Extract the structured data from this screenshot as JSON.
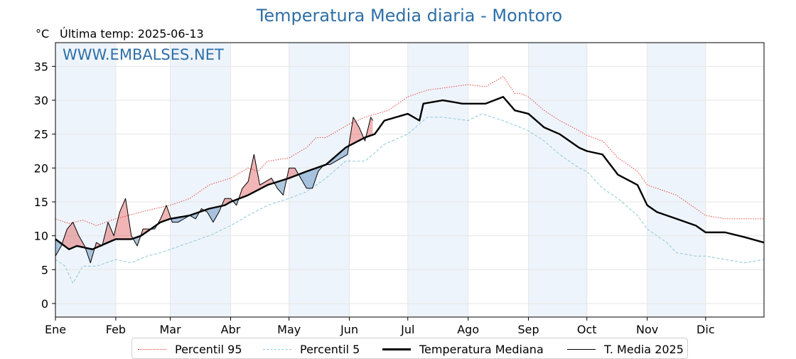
{
  "header": {
    "title": "Temperatura Media diaria - Montoro",
    "unit": "°C",
    "last_temp": "Última temp: 2025-06-13",
    "watermark": "WWW.EMBALSES.NET"
  },
  "colors": {
    "title": "#2e6fa7",
    "p95": "#e3342f",
    "p5": "#8cc7dc",
    "median": "#000000",
    "t2025": "#000000",
    "above": "#e05a5a",
    "below": "#4f86b5",
    "month_band": "#eef4fb"
  },
  "chart_data": {
    "type": "line",
    "title": "Temperatura Media diaria - Montoro",
    "ylabel": "°C",
    "xlabel": "",
    "x_unit": "day of year (1 = 1 Ene)",
    "xlim": [
      1,
      365
    ],
    "ylim": [
      -2,
      38.5
    ],
    "yticks": [
      0,
      5,
      10,
      15,
      20,
      25,
      30,
      35
    ],
    "grid": true,
    "legend_position": "bottom",
    "months": [
      "Ene",
      "Feb",
      "Mar",
      "Abr",
      "May",
      "Jun",
      "Jul",
      "Ago",
      "Sep",
      "Oct",
      "Nov",
      "Dic"
    ],
    "month_start_days": [
      1,
      32,
      60,
      91,
      121,
      152,
      182,
      213,
      244,
      274,
      305,
      335
    ],
    "series": [
      {
        "name": "Percentil 95",
        "style": "dotted-red",
        "x": [
          1,
          8,
          15,
          22,
          32,
          45,
          52,
          60,
          70,
          80,
          91,
          100,
          105,
          110,
          121,
          130,
          135,
          140,
          152,
          160,
          172,
          182,
          192,
          200,
          210,
          213,
          222,
          231,
          237,
          240,
          244,
          252,
          260,
          270,
          274,
          282,
          290,
          300,
          305,
          320,
          330,
          335,
          345,
          355,
          365
        ],
        "y": [
          12.5,
          11.8,
          12.3,
          11.5,
          12.5,
          13.5,
          14,
          14.5,
          15.5,
          17.5,
          18.5,
          20,
          19.5,
          21,
          21.5,
          23,
          24.5,
          24.5,
          26.5,
          27.5,
          28.5,
          30.5,
          31.5,
          31.8,
          32.2,
          32.3,
          32,
          33.5,
          31,
          31,
          30.5,
          28.5,
          27,
          25.5,
          24.8,
          24,
          21.5,
          19.5,
          17.5,
          16,
          14,
          13,
          12.5,
          12.5,
          12.5
        ]
      },
      {
        "name": "Percentil 5",
        "style": "dashed-lightblue",
        "x": [
          1,
          6,
          10,
          15,
          22,
          32,
          40,
          48,
          55,
          60,
          70,
          80,
          91,
          100,
          110,
          121,
          130,
          140,
          150,
          160,
          170,
          182,
          192,
          200,
          213,
          220,
          231,
          244,
          252,
          260,
          270,
          274,
          282,
          290,
          300,
          305,
          315,
          320,
          330,
          335,
          345,
          355,
          365
        ],
        "y": [
          6.5,
          5.5,
          3,
          5.5,
          5.5,
          6.5,
          6,
          7,
          7.5,
          8,
          9,
          10,
          11.5,
          13,
          14.5,
          15.5,
          16.5,
          18.5,
          21,
          21,
          23.5,
          25,
          27.5,
          27.5,
          27,
          28,
          27,
          25.5,
          24,
          22,
          20,
          19.5,
          17,
          15.5,
          13,
          11,
          9,
          7.5,
          7,
          7,
          6.5,
          6,
          6.5
        ]
      },
      {
        "name": "Temperatura Mediana",
        "style": "solid-thick-black",
        "x": [
          1,
          8,
          12,
          20,
          28,
          32,
          40,
          45,
          50,
          55,
          60,
          70,
          80,
          88,
          91,
          100,
          110,
          121,
          130,
          140,
          150,
          160,
          165,
          170,
          182,
          188,
          190,
          200,
          210,
          213,
          222,
          231,
          237,
          244,
          252,
          260,
          270,
          274,
          282,
          290,
          300,
          305,
          310,
          320,
          330,
          335,
          345,
          355,
          365
        ],
        "y": [
          9.5,
          8,
          8.5,
          8,
          9,
          9.5,
          9.5,
          10,
          11,
          12,
          12.5,
          13,
          14,
          14.5,
          15,
          16,
          17.5,
          18.5,
          19.5,
          20.5,
          23,
          24.5,
          25,
          27,
          28,
          27,
          29.5,
          30,
          29.5,
          29.5,
          29.5,
          30.5,
          28.5,
          28,
          26,
          25,
          23,
          22.5,
          22,
          19,
          17.5,
          14.5,
          13.5,
          12.5,
          11.5,
          10.5,
          10.5,
          9.8,
          9
        ]
      },
      {
        "name": "T. Media 2025",
        "style": "solid-thin-black",
        "x": [
          1,
          4,
          7,
          10,
          13,
          16,
          19,
          22,
          25,
          28,
          31,
          34,
          37,
          40,
          43,
          46,
          49,
          52,
          55,
          58,
          61,
          64,
          67,
          70,
          73,
          76,
          79,
          82,
          85,
          88,
          91,
          94,
          97,
          100,
          103,
          106,
          109,
          112,
          115,
          118,
          121,
          124,
          127,
          130,
          133,
          136,
          139,
          142,
          145,
          148,
          151,
          154,
          157,
          160,
          163,
          164
        ],
        "y": [
          7,
          8.5,
          11,
          12,
          10,
          8.5,
          6,
          9,
          8.5,
          12,
          10,
          13.5,
          15.5,
          10,
          8.5,
          11,
          11,
          11,
          12.5,
          14.5,
          12,
          12,
          12.5,
          13,
          12.5,
          14,
          13.5,
          12,
          13.5,
          15.5,
          15.5,
          14.5,
          17,
          18,
          22,
          17.5,
          18,
          18.5,
          17,
          16,
          20,
          20,
          18.5,
          17,
          17,
          19.5,
          20.5,
          20.5,
          21,
          21.5,
          22,
          27.5,
          26,
          24,
          27.5,
          27
        ]
      }
    ]
  },
  "legend": {
    "p95_label": "Percentil 95",
    "p5_label": "Percentil 5",
    "median_label": "Temperatura Mediana",
    "t2025_label": "T. Media 2025"
  }
}
